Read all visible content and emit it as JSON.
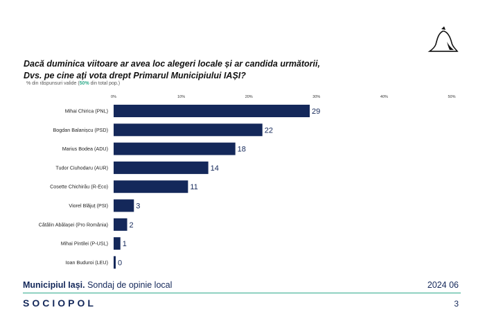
{
  "header": {
    "title_line1": "Dacă duminica viitoare ar avea loc alegeri locale și ar candida următorii,",
    "title_line2": "Dvs. pe cine ați vota drept Primarul Municipiului IAȘI?",
    "subtitle_prefix": "% din răspunsuri valide (",
    "subtitle_accent": "50%",
    "subtitle_suffix": " din total pop.)"
  },
  "chart_data": {
    "type": "bar",
    "orientation": "horizontal",
    "categories": [
      "Mihai Chirica (PNL)",
      "Bogdan Balanișcu (PSD)",
      "Marius Bodea (ADU)",
      "Tudor Ciuhodaru (AUR)",
      "Cosette Chichirău (R-Eco)",
      "Viorel Blăjuț (PSI)",
      "Cătălin Abălașei (Pro România)",
      "Mihai Pintilei (P-USL)",
      "Ioan Buduroi (LEU)"
    ],
    "values": [
      29,
      22,
      18,
      14,
      11,
      3,
      2,
      1,
      0
    ],
    "xlim": [
      0,
      50
    ],
    "ticks": [
      "0%",
      "10%",
      "20%",
      "30%",
      "40%",
      "50%"
    ],
    "tick_axis_position": "top",
    "bar_color": "#14285a",
    "data_labels": [
      "29",
      "22",
      "18",
      "14",
      "11",
      "3",
      "2",
      "1",
      "0"
    ]
  },
  "footer": {
    "location_bold": "Municipiul Iași.",
    "location_rest": " Sondaj de opinie local",
    "date": "2024 06",
    "brand": "SOCIOPOL",
    "page_number": "3"
  },
  "colors": {
    "accent": "#2eaa8a",
    "brand": "#14285a"
  }
}
